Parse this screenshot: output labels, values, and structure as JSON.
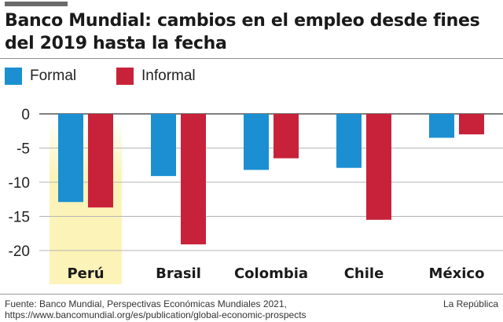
{
  "header": {
    "title": "Banco Mundial: cambios en el empleo desde fines del 2019 hasta la fecha"
  },
  "colors": {
    "formal": "#1b8fd2",
    "informal": "#c8223a",
    "highlight": "#fcf3b8",
    "grid": "#b5b5b5",
    "zero_line": "#555555"
  },
  "chart_data": {
    "type": "bar",
    "title": "Banco Mundial: cambios en el empleo desde fines del 2019 hasta la fecha",
    "xlabel": "",
    "ylabel": "",
    "ylim": [
      -23,
      0
    ],
    "yticks": [
      0,
      -5,
      -10,
      -15,
      -20
    ],
    "ytick_labels": [
      "0",
      "-5",
      "-10",
      "-15",
      "-20"
    ],
    "categories": [
      "Perú",
      "Brasil",
      "Colombia",
      "Chile",
      "México"
    ],
    "highlighted_category": "Perú",
    "legend_position": "top-left",
    "series": [
      {
        "name": "Formal",
        "color": "#1b8fd2",
        "values": [
          -12.9,
          -9.1,
          -8.2,
          -7.9,
          -3.5
        ]
      },
      {
        "name": "Informal",
        "color": "#c8223a",
        "values": [
          -13.7,
          -19.1,
          -6.5,
          -15.5,
          -3.0
        ]
      }
    ]
  },
  "footer": {
    "source_line1": "Fuente: Banco Mundial, Perspectivas Económicas Mundiales 2021,",
    "source_line2": "https://www.bancomundial.org/es/publication/global-economic-prospects",
    "credit": "La República"
  }
}
